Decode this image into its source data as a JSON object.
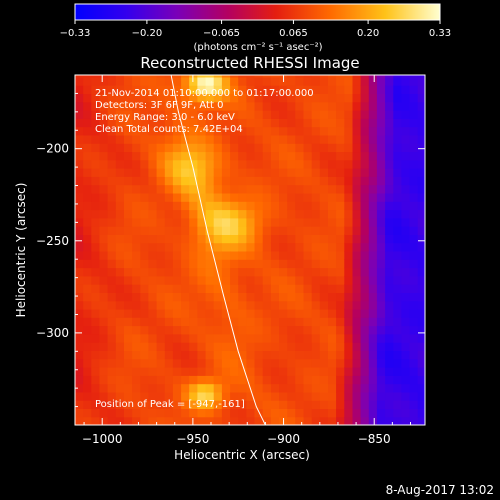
{
  "chart_data": {
    "type": "heatmap",
    "title": "Reconstructed RHESSI Image",
    "colorbar": {
      "min": -0.33,
      "max": 0.33,
      "ticks": [
        "-0.33",
        "-0.20",
        "-0.065",
        "0.065",
        "0.20",
        "0.33"
      ],
      "unit_label": "(photons cm⁻² s⁻¹ asec⁻²)"
    },
    "xlabel": "Heliocentric X (arcsec)",
    "ylabel": "Heliocentric Y (arcsec)",
    "xlim": [
      -1015,
      -822
    ],
    "ylim": [
      -350,
      -160
    ],
    "xticks": [
      -1000,
      -950,
      -900,
      -850
    ],
    "xtick_labels": [
      "−1000",
      "−950",
      "−900",
      "−850"
    ],
    "yticks": [
      -200,
      -250,
      -300
    ],
    "ytick_labels": [
      "−200",
      "−250",
      "−300"
    ],
    "limb_curve": [
      [
        -962,
        -160
      ],
      [
        -958,
        -180
      ],
      [
        -950,
        -210
      ],
      [
        -942,
        -245
      ],
      [
        -933,
        -280
      ],
      [
        -925,
        -310
      ],
      [
        -915,
        -340
      ],
      [
        -910,
        -350
      ]
    ],
    "sources": [
      {
        "x": -943,
        "y": -165,
        "peak": 0.33
      },
      {
        "x": -943,
        "y": -333,
        "peak": 0.27
      },
      {
        "x": -928,
        "y": -240,
        "peak": 0.22
      },
      {
        "x": -950,
        "y": -210,
        "peak": 0.19
      }
    ],
    "annotations": [
      "21-Nov-2014 01:10:00.000 to 01:17:00.000",
      "Detectors: 3F 6F 9F, Att 0",
      "Energy Range: 3.0 - 6.0 keV",
      "Clean     Total counts: 7.42E+04",
      "Position of Peak = [-947,-161]"
    ],
    "timestamp": "8-Aug-2017 13:02"
  }
}
